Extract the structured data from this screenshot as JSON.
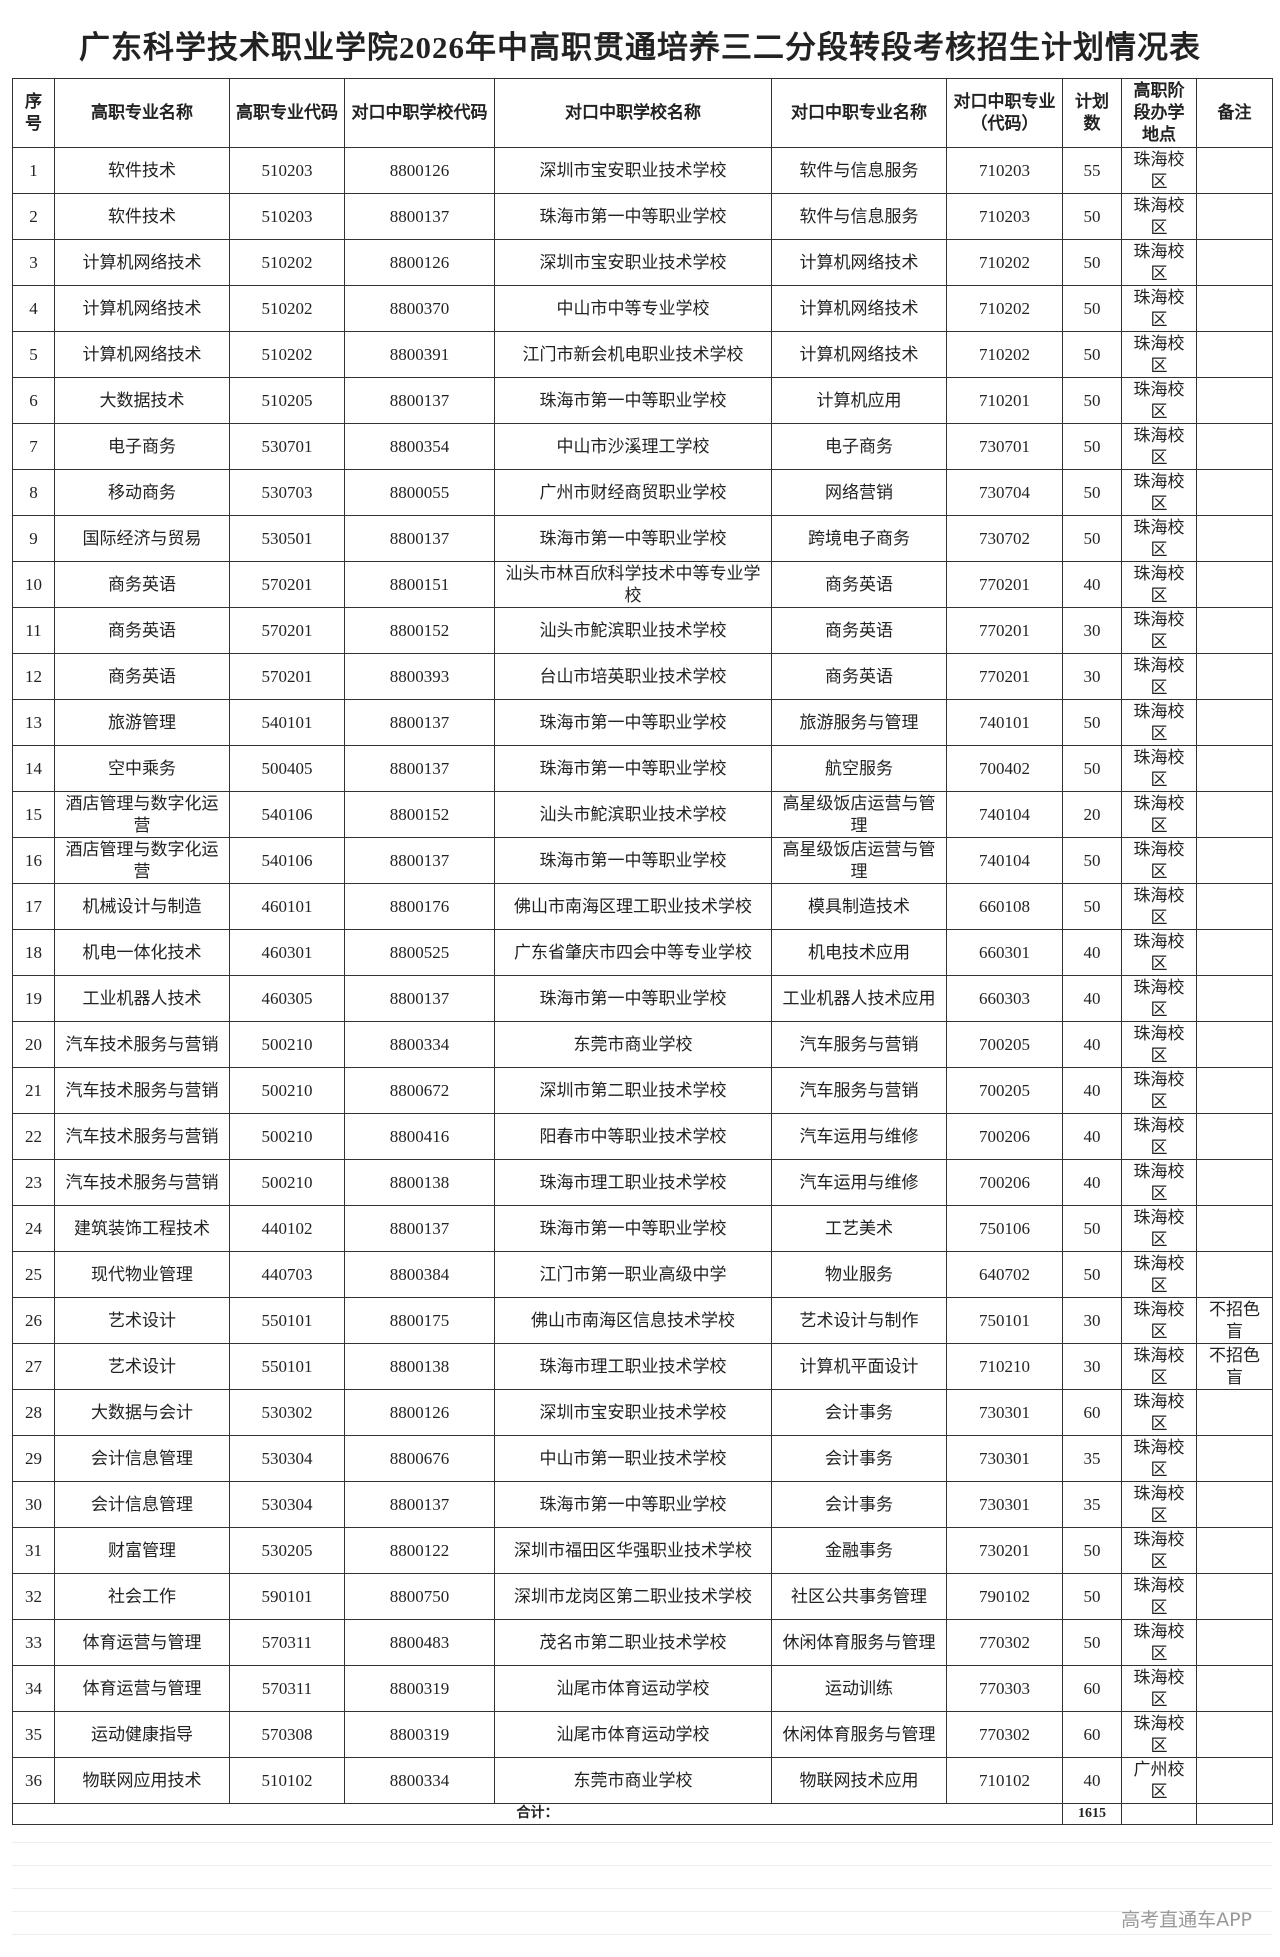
{
  "header": {
    "title": "广东科学技术职业学院2026年中高职贯通培养三二分段转段考核招生计划情况表"
  },
  "table": {
    "headers": [
      "序号",
      "高职专业名称",
      "高职专业代码",
      "对口中职学校代码",
      "对口中职学校名称",
      "对口中职专业名称",
      "对口中职专业（代码）",
      "计划数",
      "高职阶段办学地点",
      "备注"
    ],
    "rows": [
      [
        "1",
        "软件技术",
        "510203",
        "8800126",
        "深圳市宝安职业技术学校",
        "软件与信息服务",
        "710203",
        "55",
        "珠海校区",
        ""
      ],
      [
        "2",
        "软件技术",
        "510203",
        "8800137",
        "珠海市第一中等职业学校",
        "软件与信息服务",
        "710203",
        "50",
        "珠海校区",
        ""
      ],
      [
        "3",
        "计算机网络技术",
        "510202",
        "8800126",
        "深圳市宝安职业技术学校",
        "计算机网络技术",
        "710202",
        "50",
        "珠海校区",
        ""
      ],
      [
        "4",
        "计算机网络技术",
        "510202",
        "8800370",
        "中山市中等专业学校",
        "计算机网络技术",
        "710202",
        "50",
        "珠海校区",
        ""
      ],
      [
        "5",
        "计算机网络技术",
        "510202",
        "8800391",
        "江门市新会机电职业技术学校",
        "计算机网络技术",
        "710202",
        "50",
        "珠海校区",
        ""
      ],
      [
        "6",
        "大数据技术",
        "510205",
        "8800137",
        "珠海市第一中等职业学校",
        "计算机应用",
        "710201",
        "50",
        "珠海校区",
        ""
      ],
      [
        "7",
        "电子商务",
        "530701",
        "8800354",
        "中山市沙溪理工学校",
        "电子商务",
        "730701",
        "50",
        "珠海校区",
        ""
      ],
      [
        "8",
        "移动商务",
        "530703",
        "8800055",
        "广州市财经商贸职业学校",
        "网络营销",
        "730704",
        "50",
        "珠海校区",
        ""
      ],
      [
        "9",
        "国际经济与贸易",
        "530501",
        "8800137",
        "珠海市第一中等职业学校",
        "跨境电子商务",
        "730702",
        "50",
        "珠海校区",
        ""
      ],
      [
        "10",
        "商务英语",
        "570201",
        "8800151",
        "汕头市林百欣科学技术中等专业学校",
        "商务英语",
        "770201",
        "40",
        "珠海校区",
        ""
      ],
      [
        "11",
        "商务英语",
        "570201",
        "8800152",
        "汕头市鮀滨职业技术学校",
        "商务英语",
        "770201",
        "30",
        "珠海校区",
        ""
      ],
      [
        "12",
        "商务英语",
        "570201",
        "8800393",
        "台山市培英职业技术学校",
        "商务英语",
        "770201",
        "30",
        "珠海校区",
        ""
      ],
      [
        "13",
        "旅游管理",
        "540101",
        "8800137",
        "珠海市第一中等职业学校",
        "旅游服务与管理",
        "740101",
        "50",
        "珠海校区",
        ""
      ],
      [
        "14",
        "空中乘务",
        "500405",
        "8800137",
        "珠海市第一中等职业学校",
        "航空服务",
        "700402",
        "50",
        "珠海校区",
        ""
      ],
      [
        "15",
        "酒店管理与数字化运营",
        "540106",
        "8800152",
        "汕头市鮀滨职业技术学校",
        "高星级饭店运营与管理",
        "740104",
        "20",
        "珠海校区",
        ""
      ],
      [
        "16",
        "酒店管理与数字化运营",
        "540106",
        "8800137",
        "珠海市第一中等职业学校",
        "高星级饭店运营与管理",
        "740104",
        "50",
        "珠海校区",
        ""
      ],
      [
        "17",
        "机械设计与制造",
        "460101",
        "8800176",
        "佛山市南海区理工职业技术学校",
        "模具制造技术",
        "660108",
        "50",
        "珠海校区",
        ""
      ],
      [
        "18",
        "机电一体化技术",
        "460301",
        "8800525",
        "广东省肇庆市四会中等专业学校",
        "机电技术应用",
        "660301",
        "40",
        "珠海校区",
        ""
      ],
      [
        "19",
        "工业机器人技术",
        "460305",
        "8800137",
        "珠海市第一中等职业学校",
        "工业机器人技术应用",
        "660303",
        "40",
        "珠海校区",
        ""
      ],
      [
        "20",
        "汽车技术服务与营销",
        "500210",
        "8800334",
        "东莞市商业学校",
        "汽车服务与营销",
        "700205",
        "40",
        "珠海校区",
        ""
      ],
      [
        "21",
        "汽车技术服务与营销",
        "500210",
        "8800672",
        "深圳市第二职业技术学校",
        "汽车服务与营销",
        "700205",
        "40",
        "珠海校区",
        ""
      ],
      [
        "22",
        "汽车技术服务与营销",
        "500210",
        "8800416",
        "阳春市中等职业技术学校",
        "汽车运用与维修",
        "700206",
        "40",
        "珠海校区",
        ""
      ],
      [
        "23",
        "汽车技术服务与营销",
        "500210",
        "8800138",
        "珠海市理工职业技术学校",
        "汽车运用与维修",
        "700206",
        "40",
        "珠海校区",
        ""
      ],
      [
        "24",
        "建筑装饰工程技术",
        "440102",
        "8800137",
        "珠海市第一中等职业学校",
        "工艺美术",
        "750106",
        "50",
        "珠海校区",
        ""
      ],
      [
        "25",
        "现代物业管理",
        "440703",
        "8800384",
        "江门市第一职业高级中学",
        "物业服务",
        "640702",
        "50",
        "珠海校区",
        ""
      ],
      [
        "26",
        "艺术设计",
        "550101",
        "8800175",
        "佛山市南海区信息技术学校",
        "艺术设计与制作",
        "750101",
        "30",
        "珠海校区",
        "不招色盲"
      ],
      [
        "27",
        "艺术设计",
        "550101",
        "8800138",
        "珠海市理工职业技术学校",
        "计算机平面设计",
        "710210",
        "30",
        "珠海校区",
        "不招色盲"
      ],
      [
        "28",
        "大数据与会计",
        "530302",
        "8800126",
        "深圳市宝安职业技术学校",
        "会计事务",
        "730301",
        "60",
        "珠海校区",
        ""
      ],
      [
        "29",
        "会计信息管理",
        "530304",
        "8800676",
        "中山市第一职业技术学校",
        "会计事务",
        "730301",
        "35",
        "珠海校区",
        ""
      ],
      [
        "30",
        "会计信息管理",
        "530304",
        "8800137",
        "珠海市第一中等职业学校",
        "会计事务",
        "730301",
        "35",
        "珠海校区",
        ""
      ],
      [
        "31",
        "财富管理",
        "530205",
        "8800122",
        "深圳市福田区华强职业技术学校",
        "金融事务",
        "730201",
        "50",
        "珠海校区",
        ""
      ],
      [
        "32",
        "社会工作",
        "590101",
        "8800750",
        "深圳市龙岗区第二职业技术学校",
        "社区公共事务管理",
        "790102",
        "50",
        "珠海校区",
        ""
      ],
      [
        "33",
        "体育运营与管理",
        "570311",
        "8800483",
        "茂名市第二职业技术学校",
        "休闲体育服务与管理",
        "770302",
        "50",
        "珠海校区",
        ""
      ],
      [
        "34",
        "体育运营与管理",
        "570311",
        "8800319",
        "汕尾市体育运动学校",
        "运动训练",
        "770303",
        "60",
        "珠海校区",
        ""
      ],
      [
        "35",
        "运动健康指导",
        "570308",
        "8800319",
        "汕尾市体育运动学校",
        "休闲体育服务与管理",
        "770302",
        "60",
        "珠海校区",
        ""
      ],
      [
        "36",
        "物联网应用技术",
        "510102",
        "8800334",
        "东莞市商业学校",
        "物联网技术应用",
        "710102",
        "40",
        "广州校区",
        ""
      ]
    ],
    "total": {
      "label": "合计：",
      "value": "1615"
    }
  },
  "watermark": "高考直通车APP"
}
